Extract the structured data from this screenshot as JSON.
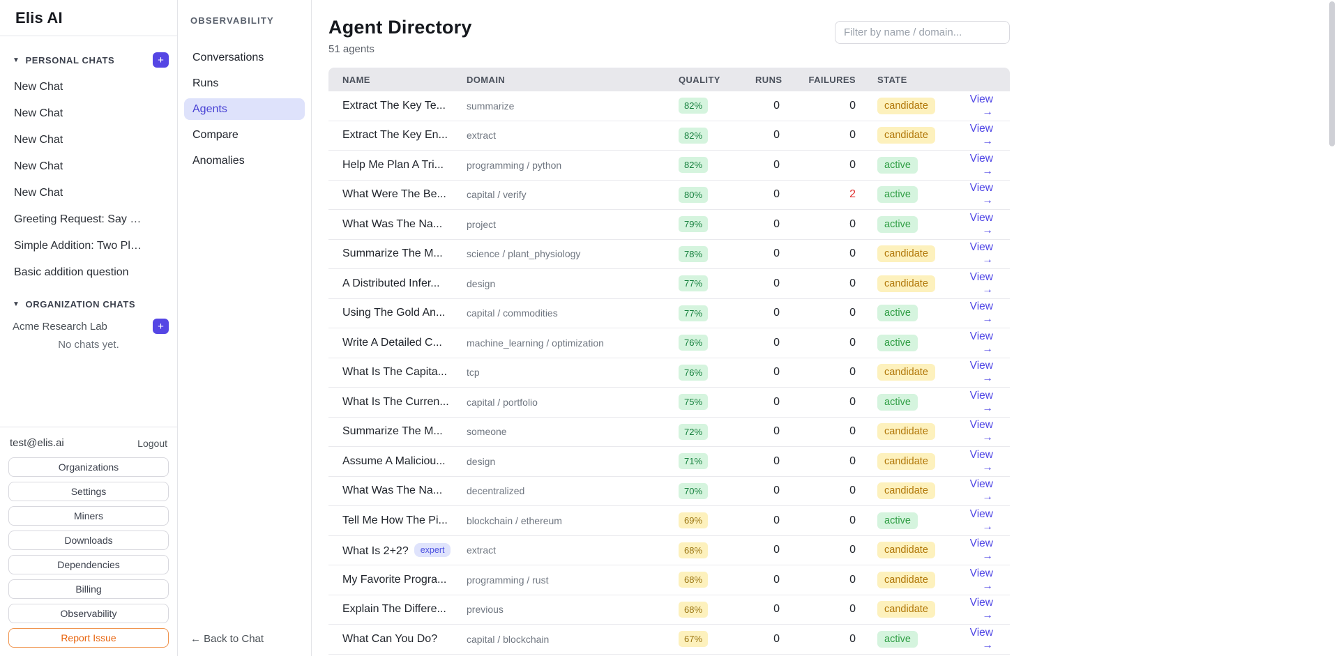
{
  "brand": "Elis AI",
  "personal_chats": {
    "label": "PERSONAL CHATS",
    "add_label": "+",
    "items": [
      "New Chat",
      "New Chat",
      "New Chat",
      "New Chat",
      "New Chat",
      "Greeting Request: Say …",
      "Simple Addition: Two Pl…",
      "Basic addition question"
    ]
  },
  "organization_chats": {
    "label": "ORGANIZATION CHATS",
    "org_name": "Acme Research Lab",
    "add_label": "+",
    "empty_text": "No chats yet."
  },
  "account": {
    "email": "test@elis.ai",
    "logout_label": "Logout",
    "buttons": [
      "Organizations",
      "Settings",
      "Miners",
      "Downloads",
      "Dependencies",
      "Billing",
      "Observability"
    ],
    "report_label": "Report Issue"
  },
  "observability": {
    "title": "OBSERVABILITY",
    "items": [
      {
        "label": "Conversations",
        "active": false
      },
      {
        "label": "Runs",
        "active": false
      },
      {
        "label": "Agents",
        "active": true
      },
      {
        "label": "Compare",
        "active": false
      },
      {
        "label": "Anomalies",
        "active": false
      }
    ],
    "back_label": "← Back to Chat"
  },
  "main": {
    "title": "Agent Directory",
    "subtitle": "51 agents",
    "filter_placeholder": "Filter by name / domain...",
    "view_label": "View →",
    "columns": [
      "NAME",
      "DOMAIN",
      "QUALITY",
      "RUNS",
      "FAILURES",
      "STATE",
      ""
    ],
    "rows": [
      {
        "name": "Extract The Key Te...",
        "domain": "summarize",
        "quality": "82%",
        "quality_level": "green",
        "runs": "0",
        "failures": "0",
        "failures_red": false,
        "state": "candidate"
      },
      {
        "name": "Extract The Key En...",
        "domain": "extract",
        "quality": "82%",
        "quality_level": "green",
        "runs": "0",
        "failures": "0",
        "failures_red": false,
        "state": "candidate"
      },
      {
        "name": "Help Me Plan A Tri...",
        "domain": "programming / python",
        "quality": "82%",
        "quality_level": "green",
        "runs": "0",
        "failures": "0",
        "failures_red": false,
        "state": "active"
      },
      {
        "name": "What Were The Be...",
        "domain": "capital / verify",
        "quality": "80%",
        "quality_level": "green",
        "runs": "0",
        "failures": "2",
        "failures_red": true,
        "state": "active"
      },
      {
        "name": "What Was The Na...",
        "domain": "project",
        "quality": "79%",
        "quality_level": "green",
        "runs": "0",
        "failures": "0",
        "failures_red": false,
        "state": "active"
      },
      {
        "name": "Summarize The M...",
        "domain": "science / plant_physiology",
        "quality": "78%",
        "quality_level": "green",
        "runs": "0",
        "failures": "0",
        "failures_red": false,
        "state": "candidate"
      },
      {
        "name": "A Distributed Infer...",
        "domain": "design",
        "quality": "77%",
        "quality_level": "green",
        "runs": "0",
        "failures": "0",
        "failures_red": false,
        "state": "candidate"
      },
      {
        "name": "Using The Gold An...",
        "domain": "capital / commodities",
        "quality": "77%",
        "quality_level": "green",
        "runs": "0",
        "failures": "0",
        "failures_red": false,
        "state": "active"
      },
      {
        "name": "Write A Detailed C...",
        "domain": "machine_learning / optimization",
        "quality": "76%",
        "quality_level": "green",
        "runs": "0",
        "failures": "0",
        "failures_red": false,
        "state": "active"
      },
      {
        "name": "What Is The Capita...",
        "domain": "tcp",
        "quality": "76%",
        "quality_level": "green",
        "runs": "0",
        "failures": "0",
        "failures_red": false,
        "state": "candidate"
      },
      {
        "name": "What Is The Curren...",
        "domain": "capital / portfolio",
        "quality": "75%",
        "quality_level": "green",
        "runs": "0",
        "failures": "0",
        "failures_red": false,
        "state": "active"
      },
      {
        "name": "Summarize The M...",
        "domain": "someone",
        "quality": "72%",
        "quality_level": "green",
        "runs": "0",
        "failures": "0",
        "failures_red": false,
        "state": "candidate"
      },
      {
        "name": "Assume A Maliciou...",
        "domain": "design",
        "quality": "71%",
        "quality_level": "green",
        "runs": "0",
        "failures": "0",
        "failures_red": false,
        "state": "candidate"
      },
      {
        "name": "What Was The Na...",
        "domain": "decentralized",
        "quality": "70%",
        "quality_level": "green",
        "runs": "0",
        "failures": "0",
        "failures_red": false,
        "state": "candidate"
      },
      {
        "name": "Tell Me How The Pi...",
        "domain": "blockchain / ethereum",
        "quality": "69%",
        "quality_level": "yellow",
        "runs": "0",
        "failures": "0",
        "failures_red": false,
        "state": "active"
      },
      {
        "name": "What Is 2+2?",
        "tag": "expert",
        "domain": "extract",
        "quality": "68%",
        "quality_level": "yellow",
        "runs": "0",
        "failures": "0",
        "failures_red": false,
        "state": "candidate"
      },
      {
        "name": "My Favorite Progra...",
        "domain": "programming / rust",
        "quality": "68%",
        "quality_level": "yellow",
        "runs": "0",
        "failures": "0",
        "failures_red": false,
        "state": "candidate"
      },
      {
        "name": "Explain The Differe...",
        "domain": "previous",
        "quality": "68%",
        "quality_level": "yellow",
        "runs": "0",
        "failures": "0",
        "failures_red": false,
        "state": "candidate"
      },
      {
        "name": "What Can You Do?",
        "domain": "capital / blockchain",
        "quality": "67%",
        "quality_level": "yellow",
        "runs": "0",
        "failures": "0",
        "failures_red": false,
        "state": "active"
      }
    ]
  },
  "colors": {
    "accent_indigo": "#5546e4",
    "active_nav_bg": "#dee2fb",
    "active_nav_text": "#4740d4",
    "quality_green_bg": "#d5f4de",
    "quality_green_text": "#15803d",
    "quality_yellow_bg": "#fdf1bd",
    "quality_yellow_text": "#9a7410",
    "candidate_text": "#b17708",
    "active_state_text": "#2f9e44",
    "failure_red": "#e03131",
    "view_link": "#4f46e5",
    "report_orange": "#e8650f"
  }
}
